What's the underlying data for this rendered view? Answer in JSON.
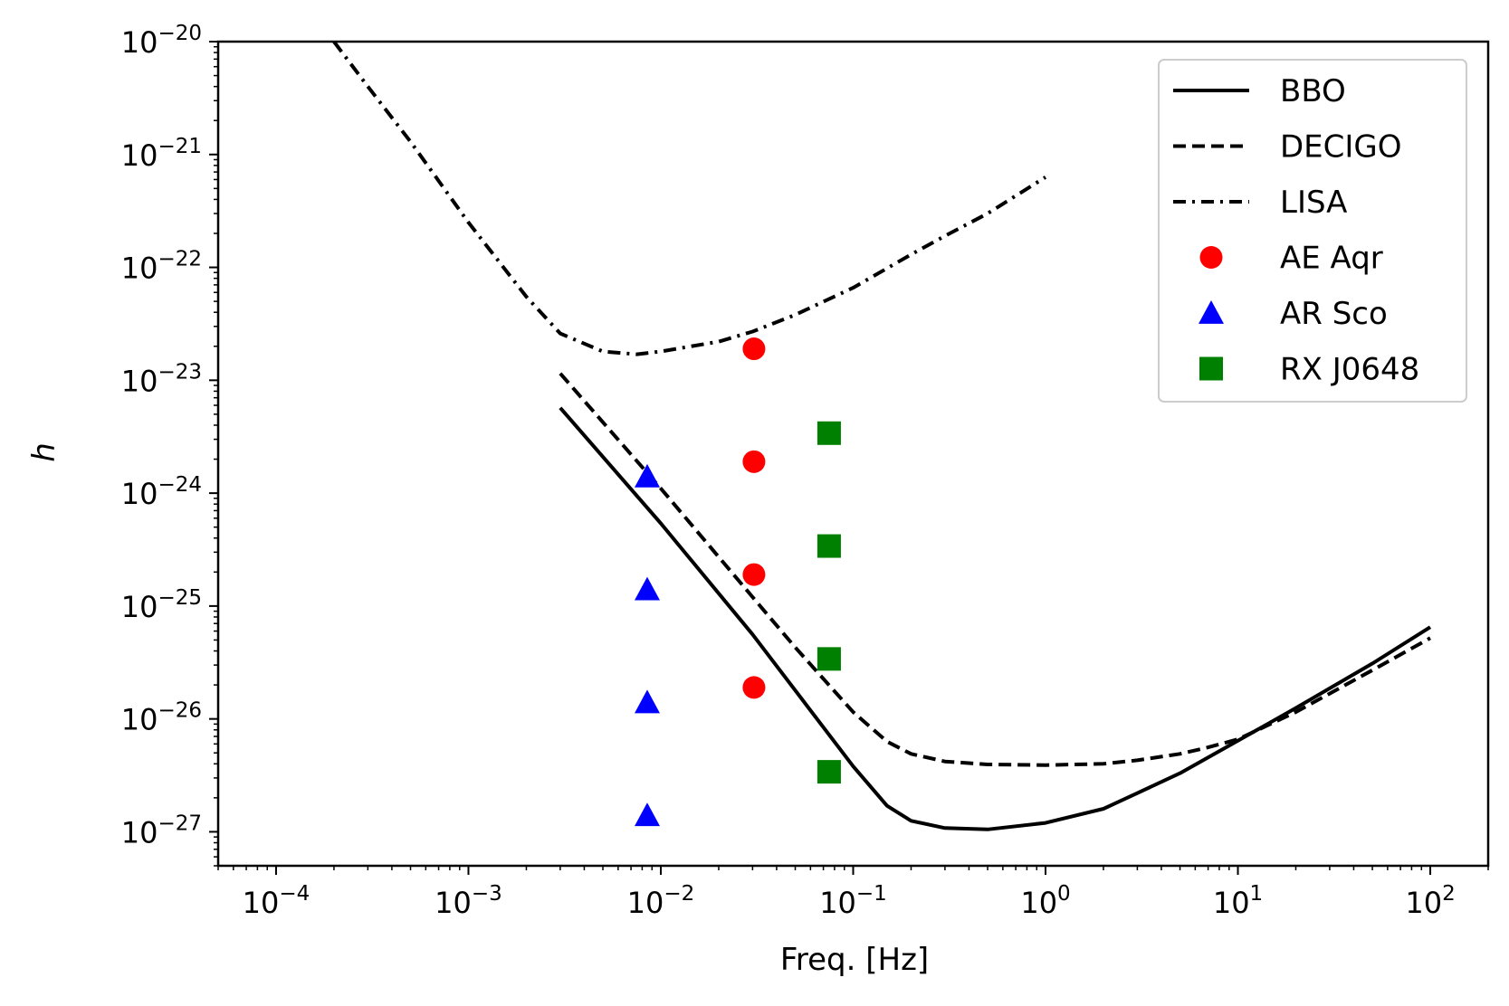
{
  "chart_data": {
    "type": "line",
    "title": "",
    "xlabel": "Freq. [Hz]",
    "ylabel": "h",
    "xscale": "log",
    "yscale": "log",
    "xlim": [
      5e-05,
      200
    ],
    "ylim": [
      5e-28,
      1e-20
    ],
    "x_ticks": [
      {
        "value": 0.0001,
        "base": "10",
        "exp": "−4"
      },
      {
        "value": 0.001,
        "base": "10",
        "exp": "−3"
      },
      {
        "value": 0.01,
        "base": "10",
        "exp": "−2"
      },
      {
        "value": 0.1,
        "base": "10",
        "exp": "−1"
      },
      {
        "value": 1,
        "base": "10",
        "exp": "0"
      },
      {
        "value": 10,
        "base": "10",
        "exp": "1"
      },
      {
        "value": 100,
        "base": "10",
        "exp": "2"
      }
    ],
    "y_ticks": [
      {
        "value": 1e-27,
        "base": "10",
        "exp": "−27"
      },
      {
        "value": 1e-26,
        "base": "10",
        "exp": "−26"
      },
      {
        "value": 1e-25,
        "base": "10",
        "exp": "−25"
      },
      {
        "value": 1e-24,
        "base": "10",
        "exp": "−24"
      },
      {
        "value": 1e-23,
        "base": "10",
        "exp": "−23"
      },
      {
        "value": 1e-22,
        "base": "10",
        "exp": "−22"
      },
      {
        "value": 1e-21,
        "base": "10",
        "exp": "−21"
      },
      {
        "value": 1e-20,
        "base": "10",
        "exp": "−20"
      }
    ],
    "legend_position": "top-right",
    "series": [
      {
        "name": "BBO",
        "kind": "line",
        "style": "solid",
        "color": "#000000",
        "x": [
          0.003,
          0.01,
          0.03,
          0.1,
          0.15,
          0.2,
          0.3,
          0.5,
          1,
          2,
          3,
          5,
          10,
          20,
          50,
          100
        ],
        "y": [
          5.7e-24,
          5.4e-25,
          5.6e-26,
          3.8e-27,
          1.7e-27,
          1.25e-27,
          1.08e-27,
          1.05e-27,
          1.2e-27,
          1.6e-27,
          2.2e-27,
          3.3e-27,
          6.4e-27,
          1.25e-26,
          3.1e-26,
          6.5e-26
        ]
      },
      {
        "name": "DECIGO",
        "kind": "line",
        "style": "dashed",
        "color": "#000000",
        "x": [
          0.003,
          0.01,
          0.03,
          0.05,
          0.1,
          0.15,
          0.2,
          0.3,
          0.5,
          1,
          2,
          3,
          5,
          7,
          10,
          20,
          50,
          100
        ],
        "y": [
          1.15e-23,
          1.1e-24,
          1.2e-25,
          4.3e-26,
          1.15e-26,
          6.3e-27,
          4.9e-27,
          4.2e-27,
          3.95e-27,
          3.9e-27,
          4e-27,
          4.3e-27,
          4.9e-27,
          5.6e-27,
          6.6e-27,
          1.15e-26,
          2.7e-26,
          5.2e-26
        ]
      },
      {
        "name": "LISA",
        "kind": "line",
        "style": "dashdot",
        "color": "#000000",
        "x": [
          0.0002,
          0.0003,
          0.0005,
          0.001,
          0.002,
          0.003,
          0.005,
          0.0075,
          0.01,
          0.02,
          0.03,
          0.05,
          0.1,
          0.2,
          0.3,
          0.5,
          1
        ],
        "y": [
          1e-20,
          4e-21,
          1.3e-21,
          2.5e-22,
          5.5e-23,
          2.6e-23,
          1.8e-23,
          1.7e-23,
          1.8e-23,
          2.2e-23,
          2.7e-23,
          3.8e-23,
          6.6e-23,
          1.3e-22,
          1.9e-22,
          3e-22,
          6.3e-22
        ]
      },
      {
        "name": "AE Aqr",
        "kind": "marker",
        "marker": "circle",
        "color": "#ff0000",
        "x": [
          0.0305,
          0.0305,
          0.0305,
          0.0305
        ],
        "y": [
          1.9e-23,
          1.9e-24,
          1.9e-25,
          1.9e-26
        ]
      },
      {
        "name": "AR Sco",
        "kind": "marker",
        "marker": "triangle",
        "color": "#0000ff",
        "x": [
          0.0085,
          0.0085,
          0.0085,
          0.0085
        ],
        "y": [
          1.4e-24,
          1.4e-25,
          1.4e-26,
          1.4e-27
        ]
      },
      {
        "name": "RX J0648",
        "kind": "marker",
        "marker": "square",
        "color": "#008000",
        "x": [
          0.075,
          0.075,
          0.075,
          0.075
        ],
        "y": [
          3.4e-24,
          3.4e-25,
          3.4e-26,
          3.4e-27
        ]
      }
    ]
  }
}
